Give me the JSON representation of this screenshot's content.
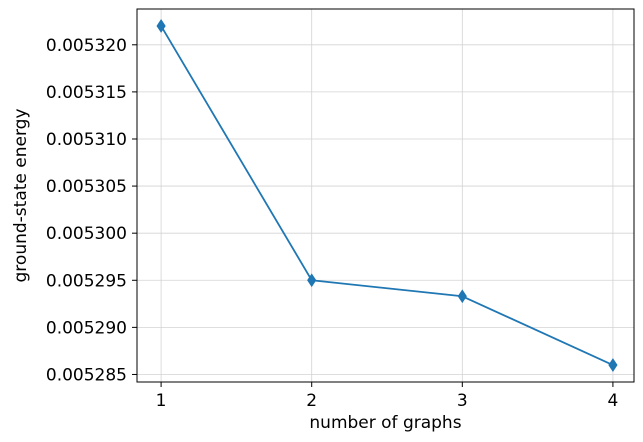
{
  "chart_data": {
    "type": "line",
    "title": "",
    "xlabel": "number of graphs",
    "ylabel": "ground-state energy",
    "x": [
      1,
      2,
      3,
      4
    ],
    "series": [
      {
        "values": [
          0.005322,
          0.005295,
          0.0052933,
          0.005286
        ],
        "color": "#1f77b4",
        "marker": "thin-diamond"
      }
    ],
    "xlim": [
      0.84,
      4.14
    ],
    "ylim": [
      0.0052842,
      0.0053238
    ],
    "x_ticks": [
      1,
      2,
      3,
      4
    ],
    "x_tick_labels": [
      "1",
      "2",
      "3",
      "4"
    ],
    "y_ticks": [
      0.005285,
      0.00529,
      0.005295,
      0.0053,
      0.005305,
      0.00531,
      0.005315,
      0.00532
    ],
    "y_tick_labels": [
      "0.005285",
      "0.005290",
      "0.005295",
      "0.005300",
      "0.005305",
      "0.005310",
      "0.005315",
      "0.005320"
    ],
    "grid": true,
    "grid_color": "#d3d3d3",
    "axis_color": "#000000"
  }
}
